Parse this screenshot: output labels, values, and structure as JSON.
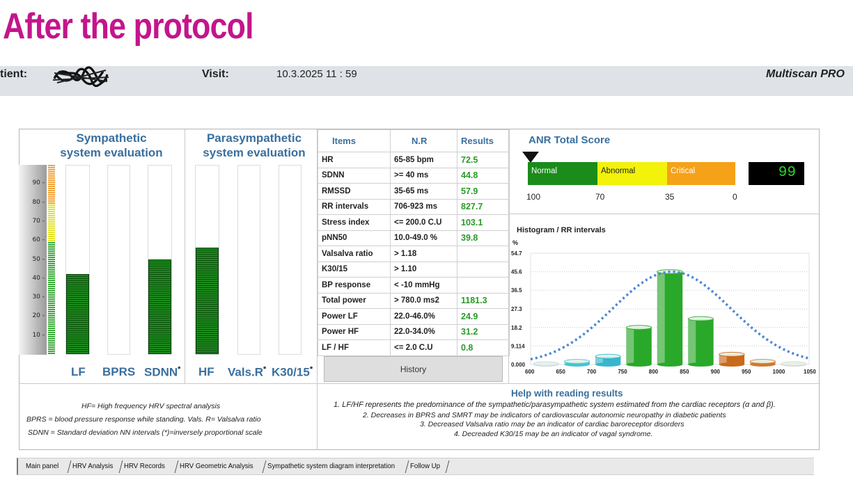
{
  "banner": "After the protocol",
  "visit_bar": {
    "patient_label": "tient:",
    "visit_label": "Visit:",
    "visit_value": "10.3.2025  11 : 59",
    "product": "Multiscan PRO"
  },
  "sympathetic": {
    "title_line1": "Sympathetic",
    "title_line2": "system evaluation",
    "scale_ticks": [
      "90",
      "80",
      "70",
      "60",
      "50",
      "40",
      "30",
      "20",
      "10"
    ],
    "columns": [
      {
        "label": "LF",
        "level_percent": 42,
        "marker": ""
      },
      {
        "label": "BPRS",
        "level_percent": 0,
        "marker": ""
      },
      {
        "label": "SDNN",
        "level_percent": 50,
        "marker": "*"
      }
    ]
  },
  "parasympathetic": {
    "title_line1": "Parasympathetic",
    "title_line2": "system evaluation",
    "columns": [
      {
        "label": "HF",
        "level_percent": 56,
        "marker": ""
      },
      {
        "label": "Vals.R",
        "level_percent": 0,
        "marker": "*"
      },
      {
        "label": "K30/15",
        "level_percent": 0,
        "marker": "*"
      }
    ]
  },
  "results_table": {
    "headers": [
      "Items",
      "N.R",
      "Results"
    ],
    "rows": [
      {
        "item": "HR",
        "nr": "65-85 bpm",
        "result": "72.5"
      },
      {
        "item": "SDNN",
        "nr": ">= 40 ms",
        "result": "44.8"
      },
      {
        "item": "RMSSD",
        "nr": "35-65 ms",
        "result": "57.9"
      },
      {
        "item": "RR intervals",
        "nr": "706-923 ms",
        "result": "827.7"
      },
      {
        "item": "Stress index",
        "nr": "<= 200.0 C.U",
        "result": "103.1"
      },
      {
        "item": "pNN50",
        "nr": "10.0-49.0 %",
        "result": "39.8"
      },
      {
        "item": "Valsalva ratio",
        "nr": "> 1.18",
        "result": ""
      },
      {
        "item": "K30/15",
        "nr": "> 1.10",
        "result": ""
      },
      {
        "item": "BP response",
        "nr": "< -10 mmHg",
        "result": ""
      },
      {
        "item": "Total power",
        "nr": "> 780.0 ms2",
        "result": "1181.3"
      },
      {
        "item": "Power LF",
        "nr": "22.0-46.0%",
        "result": "24.9"
      },
      {
        "item": "Power HF",
        "nr": "22.0-34.0%",
        "result": "31.2"
      },
      {
        "item": "LF / HF",
        "nr": "<= 2.0 C.U",
        "result": "0.8"
      }
    ],
    "history_button": "History"
  },
  "anr": {
    "title": "ANR Total Score",
    "segments": [
      {
        "label": "Normal",
        "color": "#1a8c1a",
        "text_color": "#ffffff"
      },
      {
        "label": "Abnormal",
        "color": "#f2f20a",
        "text_color": "#222222"
      },
      {
        "label": "Critical",
        "color": "#f5a218",
        "text_color": "#ffffff"
      }
    ],
    "scale_numbers": [
      "100",
      "70",
      "35",
      "0"
    ],
    "score": "99"
  },
  "chart_data": {
    "type": "bar",
    "title": "Histogram / RR intervals",
    "ylabel": "%",
    "xlabel": "",
    "y_ticks": [
      "54.7",
      "45.6",
      "36.5",
      "27.3",
      "18.2",
      "9.114",
      "0.000"
    ],
    "x_ticks": [
      "600",
      "650",
      "700",
      "750",
      "800",
      "850",
      "900",
      "950",
      "1000",
      "1050"
    ],
    "ylim": [
      0,
      54.7
    ],
    "xlim": [
      600,
      1050
    ],
    "bars": [
      {
        "x": 625,
        "value": 0.4,
        "color": "#c9d9e3"
      },
      {
        "x": 675,
        "value": 1.5,
        "color": "#46c4d6"
      },
      {
        "x": 725,
        "value": 4.0,
        "color": "#38b6cc"
      },
      {
        "x": 775,
        "value": 18.2,
        "color": "#2aa82a"
      },
      {
        "x": 825,
        "value": 45.6,
        "color": "#2aa82a"
      },
      {
        "x": 875,
        "value": 22.5,
        "color": "#2aa82a"
      },
      {
        "x": 925,
        "value": 5.0,
        "color": "#c8691c"
      },
      {
        "x": 975,
        "value": 1.5,
        "color": "#d07a30"
      },
      {
        "x": 1025,
        "value": 0.4,
        "color": "#d8d8d8"
      }
    ],
    "curve": {
      "mean": 828,
      "sd": 95,
      "peak": 45.6,
      "color": "#4d86d6"
    },
    "grid": true
  },
  "legend_left": {
    "line1": "HF= High frequency HRV spectral analysis",
    "line2": "BPRS = blood pressure response while standing.  Vals. R= Valsalva ratio",
    "line3": "SDNN = Standard deviation NN intervals      (*)=inversely proportional scale"
  },
  "help": {
    "title": "Help with reading results",
    "line1": "1. LF/HF represents  the predominance of the sympathetic/parasympathetic  system  estimated  from the cardiac receptors  (α and β).",
    "line2": "2. Decreases in BPRS and SMRT may be indicators of cardiovascular autonomic neuropathy in diabetic patients",
    "line3": "3.    Decreased Valsalva ratio may be an indicator of cardiac baroreceptor disorders",
    "line4": "4.  Decreaded K30/15 may be an indicator of vagal syndrome."
  },
  "tabs": [
    "Main panel",
    "HRV Analysis",
    "HRV Records",
    "HRV Geometric Analysis",
    "Sympathetic system diagram interpretation",
    "Follow Up"
  ]
}
